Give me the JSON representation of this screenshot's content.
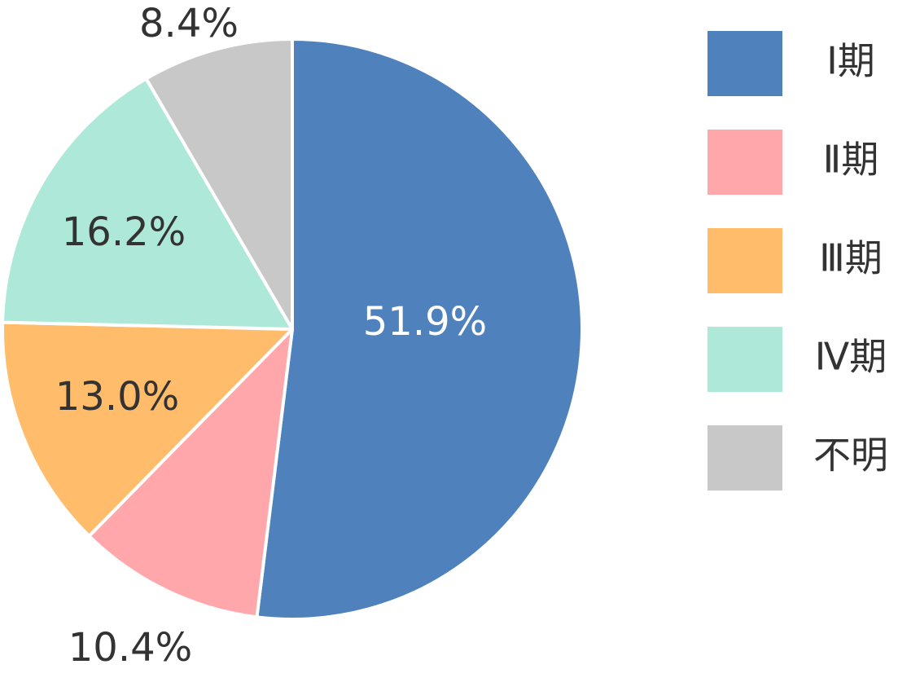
{
  "chart_data": {
    "type": "pie",
    "title": "",
    "start": "12 o'clock",
    "direction": "clockwise",
    "legend_placement": "right",
    "slices": [
      {
        "label": "Ⅰ期",
        "value": 51.9,
        "display": "51.9%",
        "color": "#4f81bd",
        "label_color": "#ffffff"
      },
      {
        "label": "Ⅱ期",
        "value": 10.4,
        "display": "10.4%",
        "color": "#ffa7aa",
        "label_color": "#333333"
      },
      {
        "label": "Ⅲ期",
        "value": 13.0,
        "display": "13.0%",
        "color": "#ffbc6b",
        "label_color": "#333333"
      },
      {
        "label": "Ⅳ期",
        "value": 16.2,
        "display": "16.2%",
        "color": "#aee8d8",
        "label_color": "#333333"
      },
      {
        "label": "不明",
        "value": 8.4,
        "display": "8.4%",
        "color": "#c8c8c8",
        "label_color": "#333333"
      }
    ]
  }
}
